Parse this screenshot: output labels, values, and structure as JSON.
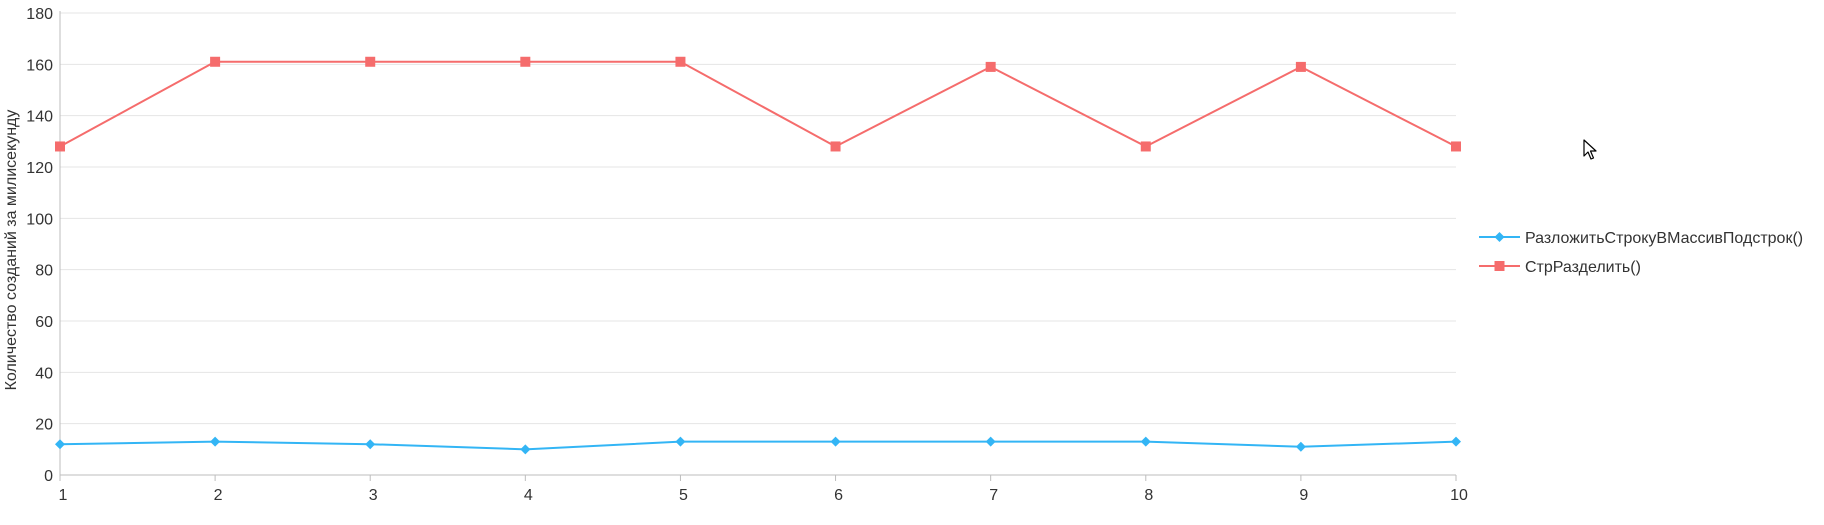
{
  "chart_data": {
    "type": "line",
    "x": [
      1,
      2,
      3,
      4,
      5,
      6,
      7,
      8,
      9,
      10
    ],
    "xlabel": "",
    "ylabel": "Количество созданий за милисекунду",
    "ylim": [
      0,
      180
    ],
    "yticks": [
      0,
      20,
      40,
      60,
      80,
      100,
      120,
      140,
      160,
      180
    ],
    "grid": true,
    "legend_position": "right",
    "series": [
      {
        "name": "РазложитьСтрокуВМассивПодстрок()",
        "color": "#33b5f5",
        "marker": "diamond",
        "values": [
          12,
          13,
          12,
          10,
          13,
          13,
          13,
          13,
          11,
          13
        ]
      },
      {
        "name": "СтрРазделить()",
        "color": "#f56c6c",
        "marker": "square",
        "values": [
          128,
          161,
          161,
          161,
          161,
          128,
          159,
          128,
          159,
          128
        ]
      }
    ]
  },
  "icons": {
    "cursor": "mouse-pointer-icon"
  }
}
